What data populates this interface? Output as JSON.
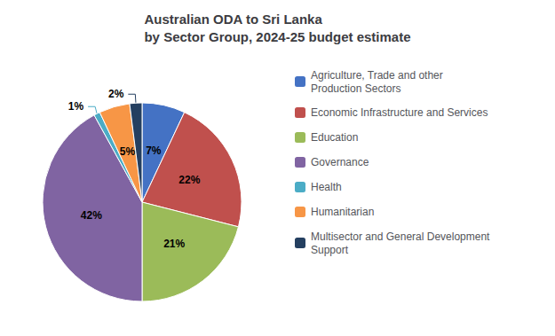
{
  "chart_data": {
    "type": "pie",
    "title": "Australian ODA to Sri Lanka\nby Sector Group, 2024-25 budget estimate",
    "categories": [
      "Agriculture, Trade and other\nProduction Sectors",
      "Economic Infrastructure and Services",
      "Education",
      "Governance",
      "Health",
      "Humanitarian",
      "Multisector and General Development\nSupport"
    ],
    "values": [
      7,
      22,
      21,
      42,
      1,
      5,
      2
    ],
    "value_labels": [
      "7%",
      "22%",
      "21%",
      "42%",
      "1%",
      "5%",
      "2%"
    ],
    "colors": [
      "#4472C4",
      "#C0504D",
      "#9BBB59",
      "#8064A2",
      "#4BACC6",
      "#F79646",
      "#243F60"
    ],
    "data_labels": true,
    "legend": "right"
  }
}
